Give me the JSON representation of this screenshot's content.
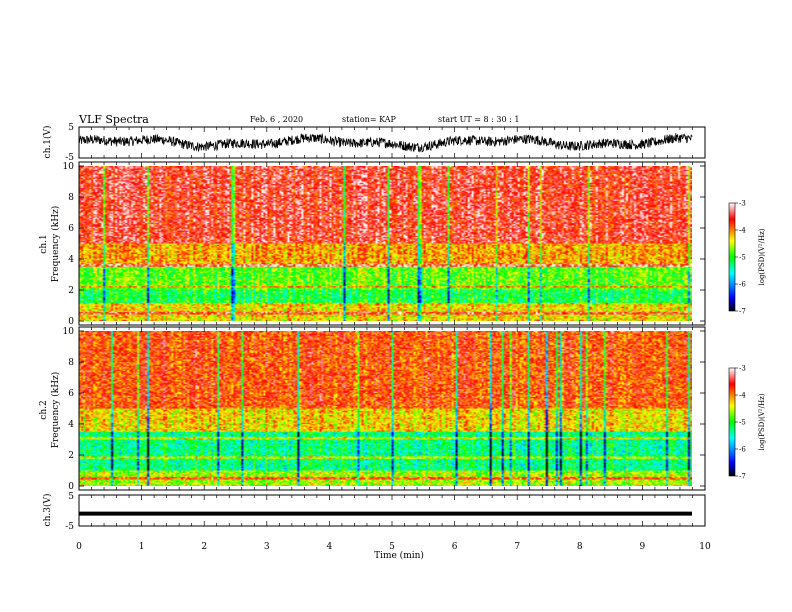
{
  "header": {
    "title": "VLF Spectra",
    "date": "Feb. 6 , 2020",
    "station": "station= KAP",
    "start_ut": "start UT =  8 : 30 : 1"
  },
  "chart_data": [
    {
      "type": "line",
      "panel": "ch1-waveform",
      "ylabel": "ch.1(V)",
      "ylim": [
        -5,
        5
      ],
      "yticks": [
        "5",
        "-5"
      ],
      "xlim": [
        0,
        10
      ],
      "note_values": "noisy waveform centred near 0 V, amplitude about ±2 V",
      "color": "#000000"
    },
    {
      "type": "heatmap",
      "panel": "ch1-spectrogram",
      "ylabel": "ch.1\nFrequency (kHz)",
      "ylim": [
        0,
        10
      ],
      "yticks": [
        "0",
        "2",
        "4",
        "6",
        "8",
        "10"
      ],
      "xlim": [
        0,
        9.8
      ],
      "colorbar": {
        "label": "log(PSD)(V²/Hz)",
        "range": [
          -7,
          -3
        ],
        "ticks": [
          "-3",
          "-4",
          "-5",
          "-6",
          "-7"
        ]
      },
      "bands": [
        {
          "kHz_range": [
            0,
            1
          ],
          "level": -4.3
        },
        {
          "kHz_range": [
            1,
            2
          ],
          "level": -5.1
        },
        {
          "kHz_range": [
            2,
            3.5
          ],
          "level": -4.8
        },
        {
          "kHz_range": [
            3.5,
            5
          ],
          "level": -4.1
        },
        {
          "kHz_range": [
            5,
            10
          ],
          "level": -3.5
        }
      ],
      "lines_kHz": [
        0.5,
        1.1,
        2.2,
        3.6
      ]
    },
    {
      "type": "heatmap",
      "panel": "ch2-spectrogram",
      "ylabel": "ch.2\nFrequency (kHz)",
      "ylim": [
        0,
        10
      ],
      "yticks": [
        "0",
        "2",
        "4",
        "6",
        "8",
        "10"
      ],
      "xlim": [
        0,
        9.8
      ],
      "colorbar": {
        "label": "log(PSD)(V²/Hz)",
        "range": [
          -7,
          -3
        ],
        "ticks": [
          "-3",
          "-4",
          "-5",
          "-6",
          "-7"
        ]
      },
      "bands": [
        {
          "kHz_range": [
            0,
            1
          ],
          "level": -4.6
        },
        {
          "kHz_range": [
            1,
            3.5
          ],
          "level": -5.3
        },
        {
          "kHz_range": [
            3.5,
            5
          ],
          "level": -4.3
        },
        {
          "kHz_range": [
            5,
            10
          ],
          "level": -3.8
        }
      ],
      "lines_kHz": [
        0.5,
        1.8,
        3.1
      ]
    },
    {
      "type": "line",
      "panel": "ch3-waveform",
      "ylabel": "ch.3(V)",
      "ylim": [
        -5,
        5
      ],
      "yticks": [
        "5",
        "-5"
      ],
      "xlim": [
        0,
        10
      ],
      "constant_value": -1,
      "xlabel": "Time (min)",
      "xticks": [
        "0",
        "1",
        "2",
        "3",
        "4",
        "5",
        "6",
        "7",
        "8",
        "9",
        "10"
      ]
    }
  ]
}
